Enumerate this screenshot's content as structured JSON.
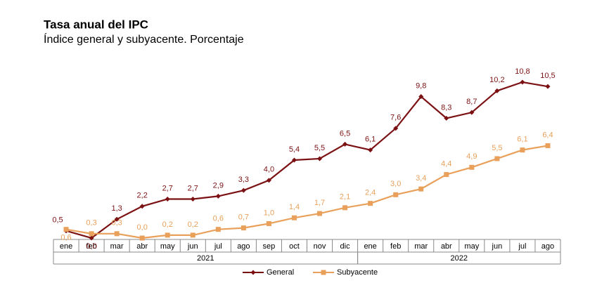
{
  "chart_data": {
    "type": "line",
    "title": "Tasa anual del IPC",
    "subtitle": "Índice general y subyacente. Porcentaje",
    "groups": [
      {
        "name": "2021",
        "categories": [
          "ene",
          "feb",
          "mar",
          "abr",
          "may",
          "jun",
          "jul",
          "ago",
          "sep",
          "oct",
          "nov",
          "dic"
        ]
      },
      {
        "name": "2022",
        "categories": [
          "ene",
          "feb",
          "mar",
          "abr",
          "may",
          "jun",
          "jul",
          "ago"
        ]
      }
    ],
    "series": [
      {
        "name": "General",
        "color": "#7b1113",
        "marker": "diamond",
        "values": [
          0.5,
          0.0,
          1.3,
          2.2,
          2.7,
          2.7,
          2.9,
          3.3,
          4.0,
          5.4,
          5.5,
          6.5,
          6.1,
          7.6,
          9.8,
          8.3,
          8.7,
          10.2,
          10.8,
          10.5
        ],
        "value_labels": [
          "0,5",
          "0,0",
          "1,3",
          "2,2",
          "2,7",
          "2,7",
          "2,9",
          "3,3",
          "4,0",
          "5,4",
          "5,5",
          "6,5",
          "6,1",
          "7,6",
          "9,8",
          "8,3",
          "8,7",
          "10,2",
          "10,8",
          "10,5"
        ]
      },
      {
        "name": "Subyacente",
        "color": "#e8a05a",
        "marker": "square",
        "values": [
          0.6,
          0.3,
          0.3,
          0.0,
          0.2,
          0.2,
          0.6,
          0.7,
          1.0,
          1.4,
          1.7,
          2.1,
          2.4,
          3.0,
          3.4,
          4.4,
          4.9,
          5.5,
          6.1,
          6.4
        ],
        "value_labels": [
          "0,6",
          "0,3",
          "0,3",
          "0,0",
          "0,2",
          "0,2",
          "0,6",
          "0,7",
          "1,0",
          "1,4",
          "1,7",
          "2,1",
          "2,4",
          "3,0",
          "3,4",
          "4,4",
          "4,9",
          "5,5",
          "6,1",
          "6,4"
        ]
      }
    ],
    "legend": "bottom"
  }
}
